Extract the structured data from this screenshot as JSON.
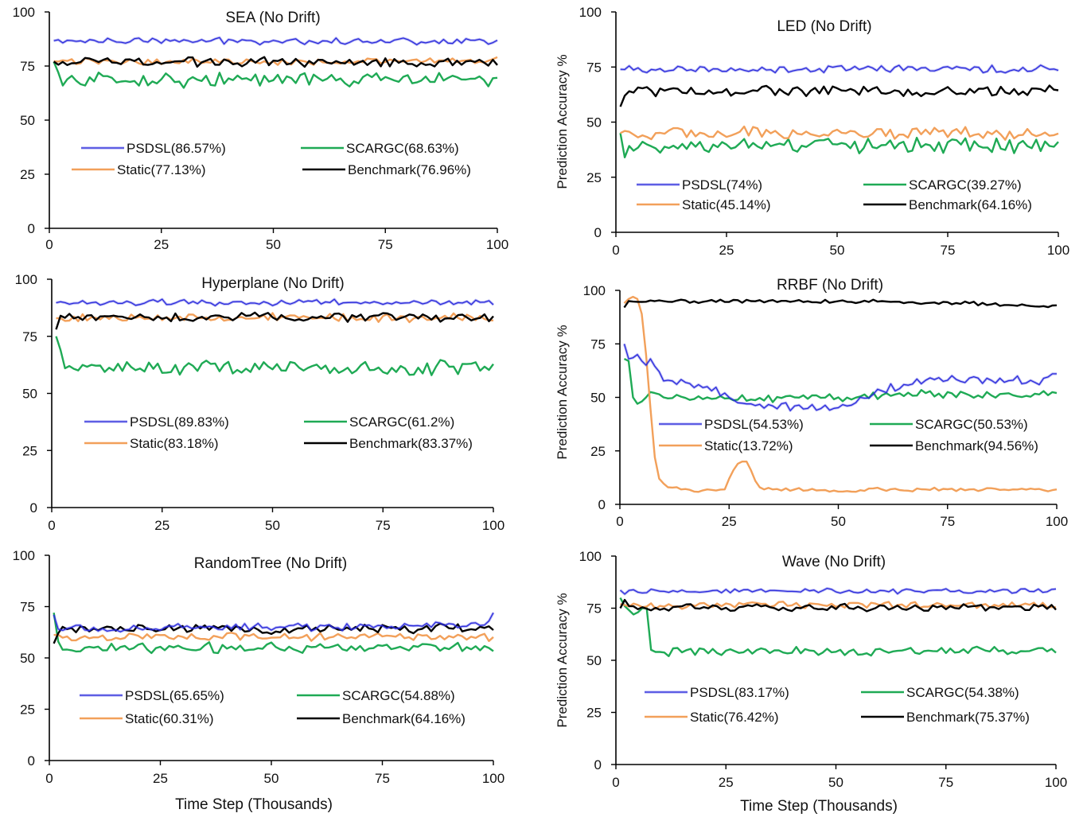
{
  "figure": {
    "xlabel": "Time Step (Thousands)",
    "colors": {
      "PSDSL": "#2b2bdc",
      "SCARGC": "#1faa55",
      "Static": "#f2a05a",
      "Benchmark": "#000000"
    }
  },
  "chart_data": [
    {
      "type": "line",
      "title": "SEA (No Drift)",
      "ylabel": "",
      "xlabel": "",
      "xlim": [
        0,
        100
      ],
      "ylim": [
        0,
        100
      ],
      "xticks": [
        0,
        25,
        50,
        75,
        100
      ],
      "yticks": [
        0,
        25,
        50,
        75,
        100
      ],
      "grid": false,
      "legend": "center",
      "series": [
        {
          "name": "PSDSL(86.57%)",
          "key": "PSDSL",
          "mean": 86.57,
          "start": 85,
          "end": 87.5,
          "noise": 1.2,
          "pts": []
        },
        {
          "name": "SCARGC(68.63%)",
          "key": "SCARGC",
          "mean": 68.63,
          "start": 77,
          "end": 70,
          "noise": 2.6,
          "pts": [
            [
              1,
              77
            ],
            [
              2,
              72
            ],
            [
              3,
              66
            ]
          ]
        },
        {
          "name": "Static(77.13%)",
          "key": "Static",
          "mean": 77.13,
          "start": 78,
          "end": 78,
          "noise": 1.3,
          "pts": []
        },
        {
          "name": "Benchmark(76.96%)",
          "key": "Benchmark",
          "mean": 76.96,
          "start": 75,
          "end": 77.5,
          "noise": 1.7,
          "pts": []
        }
      ]
    },
    {
      "type": "line",
      "title": "LED (No Drift)",
      "ylabel": "Prediction Accuracy %",
      "xlabel": "",
      "xlim": [
        0,
        100
      ],
      "ylim": [
        0,
        100
      ],
      "xticks": [
        0,
        25,
        50,
        75,
        100
      ],
      "yticks": [
        0,
        25,
        50,
        75,
        100
      ],
      "grid": false,
      "legend": "bottom",
      "series": [
        {
          "name": "PSDSL(74%)",
          "key": "PSDSL",
          "mean": 74,
          "start": 75,
          "end": 72,
          "noise": 1.4,
          "pts": []
        },
        {
          "name": "SCARGC(39.27%)",
          "key": "SCARGC",
          "mean": 39.27,
          "start": 45,
          "end": 41,
          "noise": 2.6,
          "pts": [
            [
              1,
              45
            ],
            [
              2,
              34
            ]
          ]
        },
        {
          "name": "Static(45.14%)",
          "key": "Static",
          "mean": 45.14,
          "start": 45,
          "end": 45,
          "noise": 2.2,
          "pts": []
        },
        {
          "name": "Benchmark(64.16%)",
          "key": "Benchmark",
          "mean": 64.16,
          "start": 57,
          "end": 66,
          "noise": 2.0,
          "pts": [
            [
              1,
              57
            ],
            [
              2,
              62
            ]
          ]
        }
      ]
    },
    {
      "type": "line",
      "title": "Hyperplane (No Drift)",
      "ylabel": "",
      "xlabel": "",
      "xlim": [
        0,
        100
      ],
      "ylim": [
        0,
        100
      ],
      "xticks": [
        0,
        25,
        50,
        75,
        100
      ],
      "yticks": [
        0,
        25,
        50,
        75,
        100
      ],
      "grid": false,
      "legend": "bottom",
      "series": [
        {
          "name": "PSDSL(89.83%)",
          "key": "PSDSL",
          "mean": 89.83,
          "start": 92,
          "end": 90,
          "noise": 1.0,
          "pts": []
        },
        {
          "name": "SCARGC(61.2%)",
          "key": "SCARGC",
          "mean": 61.2,
          "start": 75,
          "end": 60,
          "noise": 2.6,
          "pts": [
            [
              1,
              75
            ],
            [
              2,
              69
            ],
            [
              3,
              61
            ],
            [
              4,
              62
            ]
          ]
        },
        {
          "name": "Static(83.18%)",
          "key": "Static",
          "mean": 83.18,
          "start": 85,
          "end": 81,
          "noise": 1.5,
          "pts": []
        },
        {
          "name": "Benchmark(83.37%)",
          "key": "Benchmark",
          "mean": 83.37,
          "start": 78,
          "end": 83,
          "noise": 1.4,
          "pts": [
            [
              1,
              78
            ],
            [
              2,
              84
            ]
          ]
        }
      ]
    },
    {
      "type": "line",
      "title": "RRBF (No Drift)",
      "ylabel": "Prediction Accuracy %",
      "xlabel": "",
      "xlim": [
        0,
        100
      ],
      "ylim": [
        0,
        100
      ],
      "xticks": [
        0,
        25,
        50,
        75,
        100
      ],
      "yticks": [
        0,
        25,
        50,
        75,
        100
      ],
      "grid": false,
      "legend": "bottom",
      "series": [
        {
          "name": "PSDSL(54.53%)",
          "key": "PSDSL",
          "mean": 54.53,
          "start": 75,
          "end": 62,
          "noise": 1.8,
          "pts": [
            [
              1,
              75
            ],
            [
              2,
              68
            ],
            [
              4,
              70
            ],
            [
              6,
              65
            ],
            [
              7,
              68
            ],
            [
              9,
              62
            ],
            [
              11,
              58
            ],
            [
              15,
              57
            ],
            [
              20,
              55
            ],
            [
              25,
              50
            ],
            [
              30,
              47
            ],
            [
              35,
              46
            ],
            [
              40,
              46
            ],
            [
              45,
              44
            ],
            [
              48,
              44
            ],
            [
              52,
              46
            ],
            [
              55,
              50
            ],
            [
              60,
              53
            ],
            [
              65,
              56
            ],
            [
              70,
              58
            ],
            [
              75,
              58
            ],
            [
              80,
              59
            ],
            [
              85,
              58
            ],
            [
              90,
              58
            ],
            [
              95,
              57
            ],
            [
              99,
              61
            ],
            [
              100,
              61
            ]
          ]
        },
        {
          "name": "SCARGC(50.53%)",
          "key": "SCARGC",
          "mean": 50.53,
          "start": 68,
          "end": 52,
          "noise": 1.5,
          "pts": [
            [
              1,
              68
            ],
            [
              2,
              67
            ],
            [
              3,
              50
            ],
            [
              4,
              47
            ],
            [
              6,
              50
            ],
            [
              8,
              52
            ],
            [
              10,
              50
            ],
            [
              20,
              50
            ],
            [
              30,
              49
            ],
            [
              40,
              50
            ],
            [
              50,
              50
            ],
            [
              60,
              51
            ],
            [
              70,
              52
            ],
            [
              80,
              51
            ],
            [
              90,
              51
            ],
            [
              100,
              52
            ]
          ]
        },
        {
          "name": "Static(13.72%)",
          "key": "Static",
          "mean": 13.72,
          "start": 94,
          "end": 7,
          "noise": 0.8,
          "pts": [
            [
              1,
              94
            ],
            [
              2,
              96
            ],
            [
              3,
              97
            ],
            [
              4,
              96
            ],
            [
              5,
              89
            ],
            [
              6,
              70
            ],
            [
              7,
              45
            ],
            [
              8,
              22
            ],
            [
              9,
              12
            ],
            [
              11,
              8
            ],
            [
              14,
              7
            ],
            [
              17,
              6
            ],
            [
              20,
              7
            ],
            [
              24,
              7
            ],
            [
              25,
              12
            ],
            [
              26,
              16
            ],
            [
              27,
              19
            ],
            [
              28,
              20
            ],
            [
              29,
              20
            ],
            [
              30,
              16
            ],
            [
              31,
              11
            ],
            [
              32,
              8
            ],
            [
              35,
              7
            ],
            [
              40,
              7
            ],
            [
              50,
              6
            ],
            [
              60,
              7
            ],
            [
              70,
              7
            ],
            [
              80,
              7
            ],
            [
              90,
              7
            ],
            [
              100,
              7
            ]
          ]
        },
        {
          "name": "Benchmark(94.56%)",
          "key": "Benchmark",
          "mean": 94.56,
          "start": 92,
          "end": 93,
          "noise": 0.7,
          "pts": [
            [
              1,
              92
            ],
            [
              2,
              95
            ],
            [
              10,
              95
            ],
            [
              20,
              95
            ],
            [
              30,
              95
            ],
            [
              40,
              95
            ],
            [
              50,
              95
            ],
            [
              60,
              95
            ],
            [
              70,
              94
            ],
            [
              80,
              94
            ],
            [
              90,
              93
            ],
            [
              100,
              93
            ]
          ]
        }
      ]
    },
    {
      "type": "line",
      "title": "RandomTree (No Drift)",
      "ylabel": "",
      "xlabel": "Time Step (Thousands)",
      "xlim": [
        0,
        100
      ],
      "ylim": [
        0,
        100
      ],
      "xticks": [
        0,
        25,
        50,
        75,
        100
      ],
      "yticks": [
        0,
        25,
        50,
        75,
        100
      ],
      "grid": false,
      "legend": "bottom",
      "series": [
        {
          "name": "PSDSL(65.65%)",
          "key": "PSDSL",
          "mean": 65.65,
          "start": 71,
          "end": 73,
          "noise": 1.5,
          "pts": [
            [
              1,
              71
            ],
            [
              2,
              64
            ],
            [
              98,
              66
            ],
            [
              99,
              68
            ],
            [
              100,
              72
            ]
          ]
        },
        {
          "name": "SCARGC(54.88%)",
          "key": "SCARGC",
          "mean": 54.88,
          "start": 72,
          "end": 54,
          "noise": 2.0,
          "pts": [
            [
              1,
              72
            ],
            [
              2,
              58
            ],
            [
              3,
              54
            ]
          ]
        },
        {
          "name": "Static(60.31%)",
          "key": "Static",
          "mean": 60.31,
          "start": 57,
          "end": 61,
          "noise": 1.5,
          "pts": []
        },
        {
          "name": "Benchmark(64.16%)",
          "key": "Benchmark",
          "mean": 64.16,
          "start": 57,
          "end": 66,
          "noise": 1.8,
          "pts": [
            [
              1,
              57
            ],
            [
              2,
              62
            ]
          ]
        }
      ]
    },
    {
      "type": "line",
      "title": "Wave (No Drift)",
      "ylabel": "Prediction Accuracy %",
      "xlabel": "Time Step (Thousands)",
      "xlim": [
        0,
        100
      ],
      "ylim": [
        0,
        100
      ],
      "xticks": [
        0,
        25,
        50,
        75,
        100
      ],
      "yticks": [
        0,
        25,
        50,
        75,
        100
      ],
      "grid": false,
      "legend": "bottom",
      "series": [
        {
          "name": "PSDSL(83.17%)",
          "key": "PSDSL",
          "mean": 83.17,
          "start": 84,
          "end": 83,
          "noise": 1.0,
          "pts": []
        },
        {
          "name": "SCARGC(54.38%)",
          "key": "SCARGC",
          "mean": 54.38,
          "start": 80,
          "end": 54,
          "noise": 1.6,
          "pts": [
            [
              1,
              80
            ],
            [
              2,
              76
            ],
            [
              3,
              74
            ],
            [
              4,
              72
            ],
            [
              5,
              73
            ],
            [
              6,
              75
            ],
            [
              7,
              75
            ],
            [
              8,
              55
            ],
            [
              9,
              54
            ],
            [
              10,
              54
            ],
            [
              12,
              52
            ]
          ]
        },
        {
          "name": "Static(76.42%)",
          "key": "Static",
          "mean": 76.42,
          "start": 77,
          "end": 76,
          "noise": 1.3,
          "pts": []
        },
        {
          "name": "Benchmark(75.37%)",
          "key": "Benchmark",
          "mean": 75.37,
          "start": 75,
          "end": 76,
          "noise": 1.3,
          "pts": [
            [
              1,
              75
            ],
            [
              2,
              79
            ],
            [
              3,
              76
            ]
          ]
        }
      ]
    }
  ]
}
